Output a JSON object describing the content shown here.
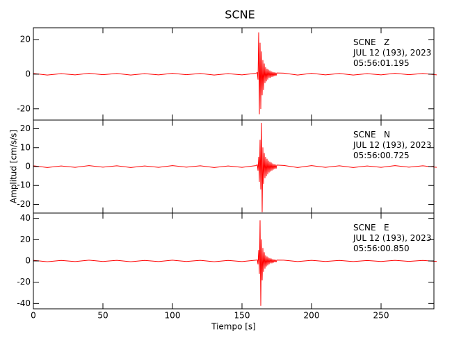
{
  "title": "SCNE",
  "ylabel": "Amplitud [cm/s/s]",
  "chart_data": [
    {
      "type": "line",
      "annotations": [
        "SCNE   Z",
        "JUL 12 (193), 2023",
        "05:56:01.195"
      ],
      "x": [
        0,
        10,
        20,
        30,
        40,
        50,
        60,
        70,
        80,
        90,
        100,
        110,
        120,
        130,
        140,
        150,
        160,
        161,
        161.5,
        162,
        162.5,
        163,
        163.5,
        164,
        164.5,
        165,
        165.5,
        166,
        166.5,
        167,
        167.5,
        168,
        168.5,
        169,
        169.5,
        170,
        170.5,
        171,
        171.5,
        172,
        172.5,
        173,
        173.5,
        174,
        174.5,
        175,
        180,
        190,
        200,
        210,
        220,
        230,
        240,
        250,
        260,
        270,
        280,
        290
      ],
      "series": [
        {
          "color": "#ff0000",
          "values": [
            0.4,
            -0.5,
            0.3,
            -0.4,
            0.5,
            -0.3,
            0.4,
            -0.5,
            0.3,
            -0.4,
            0.5,
            -0.3,
            0.4,
            -0.5,
            0.3,
            -0.4,
            0.5,
            1,
            -3,
            24,
            -23,
            18,
            -20,
            13,
            -12,
            8,
            -9,
            6,
            -5,
            4,
            -4,
            3,
            -3,
            2.5,
            -2,
            2,
            -2,
            1.5,
            -1.5,
            1.2,
            -1.2,
            1,
            -1,
            0.8,
            -0.8,
            0.7,
            0.6,
            -0.5,
            0.5,
            -0.4,
            0.4,
            -0.5,
            0.3,
            -0.4,
            0.5,
            -0.3,
            0.4,
            -0.4
          ]
        }
      ],
      "xlim": [
        0,
        288
      ],
      "ylim": [
        -26.5,
        26.8
      ],
      "xticks": [
        0,
        50,
        100,
        150,
        200,
        250
      ],
      "yticks": [
        -20,
        0,
        20
      ]
    },
    {
      "type": "line",
      "annotations": [
        "SCNE   N",
        "JUL 12 (193), 2023",
        "05:56:00.725"
      ],
      "x": [
        0,
        10,
        20,
        30,
        40,
        50,
        60,
        70,
        80,
        90,
        100,
        110,
        120,
        130,
        140,
        150,
        160,
        161,
        161.5,
        162,
        162.5,
        163,
        163.5,
        164,
        164.5,
        165,
        165.5,
        166,
        166.5,
        167,
        167.5,
        168,
        168.5,
        169,
        169.5,
        170,
        170.5,
        171,
        171.5,
        172,
        172.5,
        173,
        173.5,
        174,
        174.5,
        175,
        180,
        190,
        200,
        210,
        220,
        230,
        240,
        250,
        260,
        270,
        280,
        290
      ],
      "series": [
        {
          "color": "#ff0000",
          "values": [
            0.4,
            -0.5,
            0.3,
            -0.4,
            0.5,
            -0.3,
            0.4,
            -0.5,
            0.3,
            -0.4,
            0.5,
            -0.3,
            0.4,
            -0.5,
            0.3,
            -0.4,
            0.5,
            1,
            -2,
            5,
            -8,
            14,
            -12,
            23,
            -24,
            10,
            -9,
            7,
            -6,
            5,
            -5,
            4,
            -4,
            3,
            -3,
            2.5,
            -2.5,
            2,
            -2,
            1.5,
            -1.5,
            1.2,
            -1.2,
            1,
            -1,
            0.8,
            0.6,
            -0.5,
            0.5,
            -0.4,
            0.4,
            -0.5,
            0.3,
            -0.4,
            0.5,
            -0.3,
            0.4,
            -0.4
          ]
        }
      ],
      "xlim": [
        0,
        288
      ],
      "ylim": [
        -24.6,
        24.6
      ],
      "xticks": [
        0,
        50,
        100,
        150,
        200,
        250
      ],
      "yticks": [
        -20,
        -10,
        0,
        10,
        20
      ]
    },
    {
      "type": "line",
      "annotations": [
        "SCNE   E",
        "JUL 12 (193), 2023",
        "05:56:00.850"
      ],
      "xlabel": "Tiempo [s]",
      "x": [
        0,
        10,
        20,
        30,
        40,
        50,
        60,
        70,
        80,
        90,
        100,
        110,
        120,
        130,
        140,
        150,
        160,
        161,
        161.5,
        162,
        162.5,
        163,
        163.5,
        164,
        164.5,
        165,
        165.5,
        166,
        166.5,
        167,
        167.5,
        168,
        168.5,
        169,
        169.5,
        170,
        170.5,
        171,
        171.5,
        172,
        172.5,
        173,
        173.5,
        174,
        174.5,
        175,
        180,
        190,
        200,
        210,
        220,
        230,
        240,
        250,
        260,
        270,
        280,
        290
      ],
      "series": [
        {
          "color": "#ff0000",
          "values": [
            0.6,
            -0.7,
            0.5,
            -0.6,
            0.7,
            -0.5,
            0.6,
            -0.7,
            0.5,
            -0.6,
            0.7,
            -0.5,
            0.6,
            -0.7,
            0.5,
            -0.6,
            0.7,
            1,
            -3,
            10,
            -12,
            38,
            -42,
            20,
            -18,
            12,
            -10,
            8,
            -7,
            5,
            -5,
            4,
            -4,
            3,
            -3,
            2.5,
            -2,
            2,
            -2,
            1.5,
            -1.5,
            1.2,
            -1,
            1,
            -1,
            0.8,
            0.7,
            -0.6,
            0.6,
            -0.5,
            0.5,
            -0.6,
            0.4,
            -0.5,
            0.6,
            -0.4,
            0.5,
            -0.5
          ]
        }
      ],
      "xlim": [
        0,
        288
      ],
      "ylim": [
        -45,
        45
      ],
      "xticks": [
        0,
        50,
        100,
        150,
        200,
        250
      ],
      "yticks": [
        -40,
        -20,
        0,
        20,
        40
      ]
    }
  ]
}
